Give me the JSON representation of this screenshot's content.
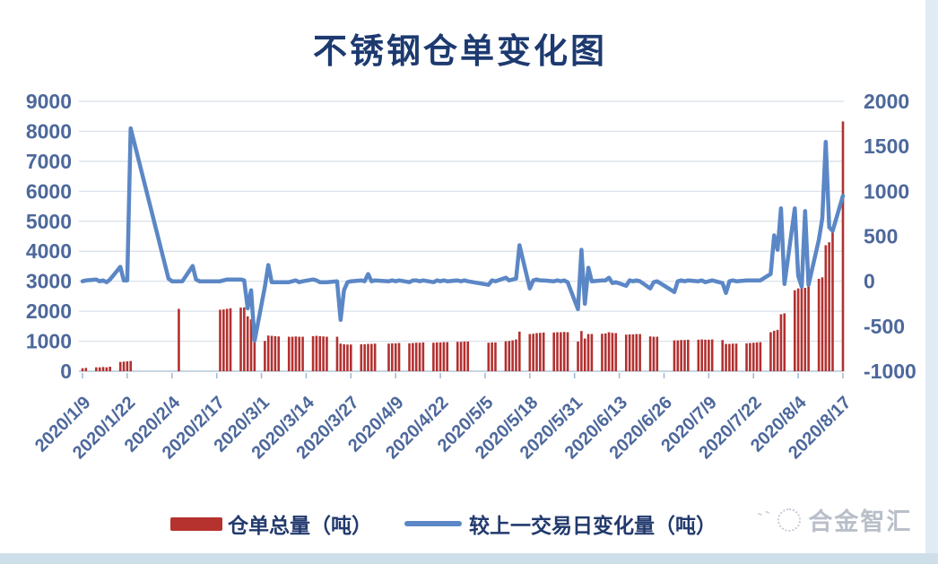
{
  "title": "不锈钢仓单变化图",
  "watermark": {
    "text": "合金智汇"
  },
  "chart_data": {
    "type": "bar+line combo",
    "title": "不锈钢仓单变化图",
    "legend_position": "bottom",
    "grid": "horizontal only",
    "left_axis": {
      "min": 0,
      "max": 9000,
      "step": 1000,
      "ticks": [
        "0",
        "1000",
        "2000",
        "3000",
        "4000",
        "5000",
        "6000",
        "7000",
        "8000",
        "9000"
      ]
    },
    "right_axis": {
      "min": -1000,
      "max": 2000,
      "step": 500,
      "ticks": [
        "-1000",
        "-500",
        "0",
        "500",
        "1000",
        "1500",
        "2000"
      ]
    },
    "x_tick_labels": [
      "2020/1/9",
      "2020/1/22",
      "2020/2/4",
      "2020/2/17",
      "2020/3/1",
      "2020/3/14",
      "2020/3/27",
      "2020/4/9",
      "2020/4/22",
      "2020/5/5",
      "2020/5/18",
      "2020/5/31",
      "2020/6/13",
      "2020/6/26",
      "2020/7/9",
      "2020/7/22",
      "2020/8/4",
      "2020/8/17"
    ],
    "series": [
      {
        "name": "仓单总量（吨）",
        "type": "bar",
        "axis": "left",
        "color": "#b23130"
      },
      {
        "name": "较上一交易日变化量（吨）",
        "type": "line",
        "axis": "right",
        "color": "#5b87c6"
      }
    ],
    "colors": {
      "bar": "#b23130",
      "line": "#5b87c6",
      "grid": "#d7dfe8",
      "axis_line": "#b6c7d9",
      "tick": "#9db7d1",
      "label": "#4d689b",
      "title_text": "#1d3a70"
    },
    "point_format": [
      "date(2020)",
      "仓单总量(吨)",
      "较上一交易日变化量(吨)"
    ],
    "points": [
      [
        "1/9",
        100,
        0
      ],
      [
        "1/10",
        110,
        10
      ],
      [
        "1/13",
        130,
        20
      ],
      [
        "1/14",
        130,
        0
      ],
      [
        "1/15",
        140,
        10
      ],
      [
        "1/16",
        130,
        -10
      ],
      [
        "1/17",
        150,
        20
      ],
      [
        "1/20",
        310,
        160
      ],
      [
        "1/21",
        320,
        10
      ],
      [
        "1/22",
        330,
        10
      ],
      [
        "1/23",
        340,
        1700
      ],
      [
        "2/3",
        null,
        30
      ],
      [
        "2/4",
        null,
        0
      ],
      [
        "2/5",
        null,
        0
      ],
      [
        "2/6",
        2080,
        0
      ],
      [
        "2/7",
        null,
        0
      ],
      [
        "2/10",
        null,
        170
      ],
      [
        "2/11",
        null,
        20
      ],
      [
        "2/12",
        null,
        0
      ],
      [
        "2/13",
        null,
        0
      ],
      [
        "2/14",
        null,
        0
      ],
      [
        "2/17",
        null,
        0
      ],
      [
        "2/18",
        2050,
        0
      ],
      [
        "2/19",
        2060,
        10
      ],
      [
        "2/20",
        2080,
        20
      ],
      [
        "2/21",
        2100,
        20
      ],
      [
        "2/24",
        2120,
        20
      ],
      [
        "2/25",
        2130,
        10
      ],
      [
        "2/26",
        1830,
        -300
      ],
      [
        "2/27",
        1730,
        -100
      ],
      [
        "2/28",
        1070,
        -660
      ],
      [
        "3/2",
        1010,
        -60
      ],
      [
        "3/3",
        1190,
        180
      ],
      [
        "3/4",
        1180,
        -10
      ],
      [
        "3/5",
        1170,
        -10
      ],
      [
        "3/6",
        1160,
        -10
      ],
      [
        "3/9",
        1150,
        -10
      ],
      [
        "3/10",
        1150,
        0
      ],
      [
        "3/11",
        1160,
        10
      ],
      [
        "3/12",
        1150,
        -10
      ],
      [
        "3/13",
        1150,
        0
      ],
      [
        "3/16",
        1170,
        20
      ],
      [
        "3/17",
        1180,
        10
      ],
      [
        "3/18",
        1170,
        -10
      ],
      [
        "3/19",
        1160,
        -10
      ],
      [
        "3/20",
        1150,
        -10
      ],
      [
        "3/23",
        1150,
        0
      ],
      [
        "3/24",
        920,
        -430
      ],
      [
        "3/25",
        900,
        -100
      ],
      [
        "3/26",
        890,
        -10
      ],
      [
        "3/27",
        890,
        0
      ],
      [
        "3/30",
        900,
        10
      ],
      [
        "3/31",
        900,
        0
      ],
      [
        "4/1",
        910,
        80
      ],
      [
        "4/2",
        910,
        0
      ],
      [
        "4/3",
        920,
        10
      ],
      [
        "4/7",
        920,
        0
      ],
      [
        "4/8",
        930,
        10
      ],
      [
        "4/9",
        930,
        0
      ],
      [
        "4/10",
        940,
        10
      ],
      [
        "4/13",
        930,
        -10
      ],
      [
        "4/14",
        940,
        10
      ],
      [
        "4/15",
        950,
        10
      ],
      [
        "4/16",
        950,
        0
      ],
      [
        "4/17",
        960,
        10
      ],
      [
        "4/20",
        950,
        -10
      ],
      [
        "4/21",
        960,
        10
      ],
      [
        "4/22",
        960,
        0
      ],
      [
        "4/23",
        970,
        10
      ],
      [
        "4/24",
        970,
        0
      ],
      [
        "4/27",
        980,
        10
      ],
      [
        "4/28",
        980,
        0
      ],
      [
        "4/29",
        990,
        10
      ],
      [
        "4/30",
        990,
        0
      ],
      [
        "5/6",
        950,
        -40
      ],
      [
        "5/7",
        960,
        10
      ],
      [
        "5/8",
        960,
        0
      ],
      [
        "5/11",
        1000,
        40
      ],
      [
        "5/12",
        1010,
        10
      ],
      [
        "5/13",
        1030,
        20
      ],
      [
        "5/14",
        1060,
        30
      ],
      [
        "5/15",
        1320,
        400
      ],
      [
        "5/18",
        1240,
        -80
      ],
      [
        "5/19",
        1250,
        10
      ],
      [
        "5/20",
        1270,
        20
      ],
      [
        "5/21",
        1280,
        10
      ],
      [
        "5/22",
        1290,
        10
      ],
      [
        "5/25",
        1290,
        0
      ],
      [
        "5/26",
        1300,
        10
      ],
      [
        "5/27",
        1300,
        0
      ],
      [
        "5/28",
        1310,
        10
      ],
      [
        "5/29",
        1300,
        -10
      ],
      [
        "6/1",
        990,
        -310
      ],
      [
        "6/2",
        1340,
        350
      ],
      [
        "6/3",
        1090,
        -250
      ],
      [
        "6/4",
        1240,
        150
      ],
      [
        "6/5",
        1240,
        0
      ],
      [
        "6/8",
        1250,
        10
      ],
      [
        "6/9",
        1260,
        10
      ],
      [
        "6/10",
        1300,
        40
      ],
      [
        "6/11",
        1280,
        -20
      ],
      [
        "6/12",
        1270,
        -10
      ],
      [
        "6/15",
        1220,
        -50
      ],
      [
        "6/16",
        1230,
        10
      ],
      [
        "6/17",
        1230,
        0
      ],
      [
        "6/18",
        1240,
        10
      ],
      [
        "6/19",
        1240,
        0
      ],
      [
        "6/22",
        1160,
        -80
      ],
      [
        "6/23",
        1150,
        -10
      ],
      [
        "6/24",
        1150,
        0
      ],
      [
        "6/29",
        1030,
        -120
      ],
      [
        "6/30",
        1030,
        0
      ],
      [
        "7/1",
        1040,
        10
      ],
      [
        "7/2",
        1040,
        0
      ],
      [
        "7/3",
        1050,
        10
      ],
      [
        "7/6",
        1050,
        0
      ],
      [
        "7/7",
        1060,
        10
      ],
      [
        "7/8",
        1050,
        -10
      ],
      [
        "7/9",
        1050,
        0
      ],
      [
        "7/10",
        1060,
        10
      ],
      [
        "7/13",
        1040,
        -20
      ],
      [
        "7/14",
        910,
        -130
      ],
      [
        "7/15",
        910,
        0
      ],
      [
        "7/16",
        920,
        10
      ],
      [
        "7/17",
        920,
        0
      ],
      [
        "7/20",
        930,
        10
      ],
      [
        "7/21",
        940,
        10
      ],
      [
        "7/22",
        950,
        10
      ],
      [
        "7/23",
        960,
        10
      ],
      [
        "7/24",
        970,
        10
      ],
      [
        "7/27",
        1300,
        80
      ],
      [
        "7/28",
        1350,
        510
      ],
      [
        "7/29",
        1380,
        350
      ],
      [
        "7/30",
        1900,
        810
      ],
      [
        "7/31",
        1930,
        -30
      ],
      [
        "8/3",
        2700,
        810
      ],
      [
        "8/4",
        2760,
        60
      ],
      [
        "8/5",
        2800,
        -60
      ],
      [
        "8/6",
        2780,
        780
      ],
      [
        "8/7",
        3050,
        -40
      ],
      [
        "8/10",
        3080,
        460
      ],
      [
        "8/11",
        3130,
        700
      ],
      [
        "8/12",
        4200,
        1550
      ],
      [
        "8/13",
        4300,
        600
      ],
      [
        "8/14",
        4800,
        560
      ],
      [
        "8/17",
        8330,
        950
      ]
    ]
  }
}
